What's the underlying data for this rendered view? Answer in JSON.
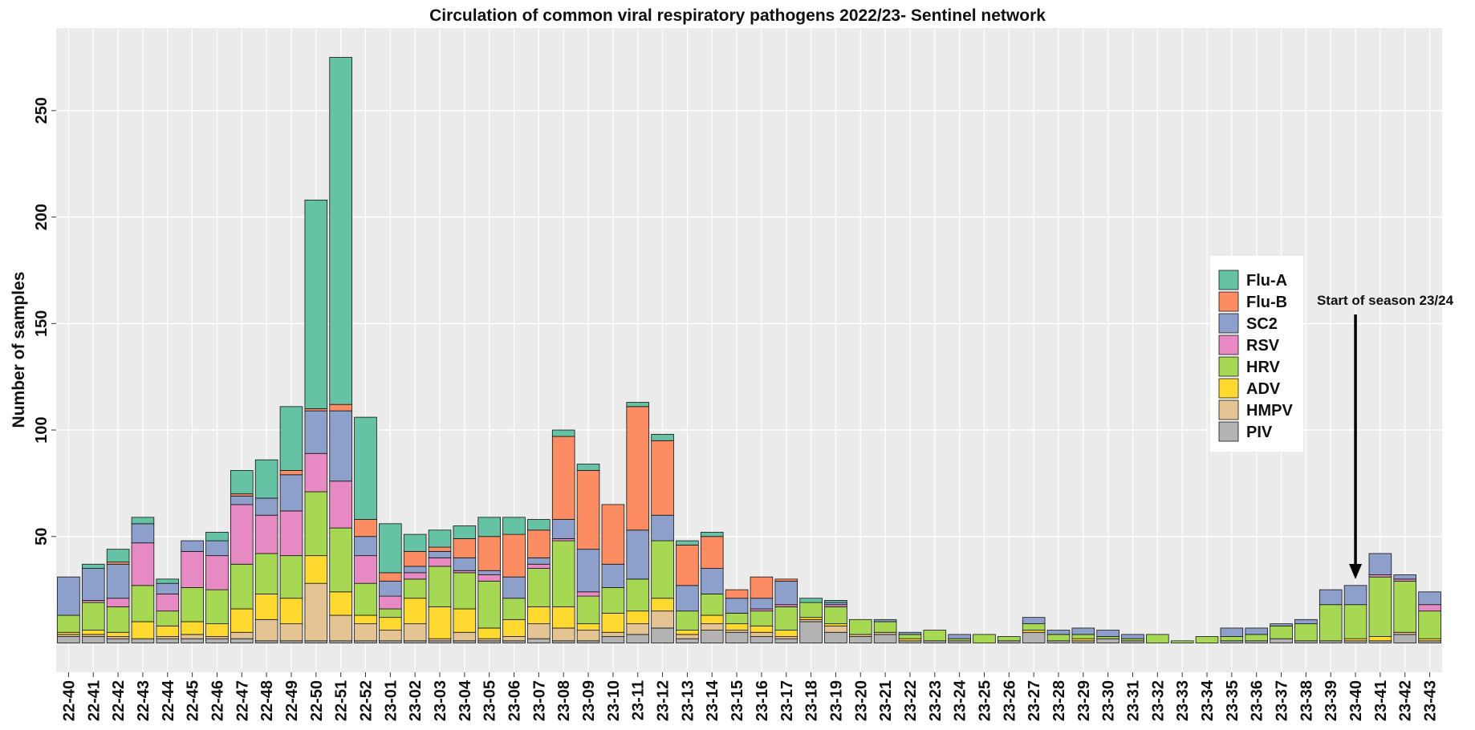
{
  "chart_data": {
    "type": "stacked_bar",
    "title": "Circulation of common viral respiratory  pathogens 2022/23- Sentinel network",
    "y_label": "Number of samples",
    "annotation": "Start of season 23/24",
    "annotation_category": "23-40",
    "categories": [
      "22-40",
      "22-41",
      "22-42",
      "22-43",
      "22-44",
      "22-45",
      "22-46",
      "22-47",
      "22-48",
      "22-49",
      "22-50",
      "22-51",
      "22-52",
      "23-01",
      "23-02",
      "23-03",
      "23-04",
      "23-05",
      "23-06",
      "23-07",
      "23-08",
      "23-09",
      "23-10",
      "23-11",
      "23-12",
      "23-13",
      "23-14",
      "23-15",
      "23-16",
      "23-17",
      "23-18",
      "23-19",
      "23-20",
      "23-21",
      "23-22",
      "23-23",
      "23-24",
      "23-25",
      "23-26",
      "23-27",
      "23-28",
      "23-29",
      "23-30",
      "23-31",
      "23-32",
      "23-33",
      "23-34",
      "23-35",
      "23-36",
      "23-37",
      "23-38",
      "23-39",
      "23-40",
      "23-41",
      "23-42",
      "23-43"
    ],
    "series": [
      {
        "name": "Flu-A",
        "color": "#66c2a5",
        "values": [
          0,
          2,
          6,
          3,
          2,
          0,
          4,
          11,
          18,
          30,
          98,
          163,
          48,
          23,
          8,
          8,
          6,
          9,
          8,
          5,
          3,
          3,
          0,
          2,
          3,
          2,
          2,
          0,
          0,
          0,
          2,
          1,
          0,
          0,
          0,
          0,
          0,
          0,
          0,
          0,
          0,
          0,
          0,
          0,
          0,
          0,
          0,
          0,
          0,
          0,
          0,
          0,
          0,
          0,
          0,
          0
        ]
      },
      {
        "name": "Flu-B",
        "color": "#fc8d62",
        "values": [
          0,
          0,
          1,
          0,
          0,
          0,
          0,
          1,
          0,
          2,
          1,
          3,
          8,
          4,
          7,
          2,
          9,
          16,
          20,
          13,
          39,
          37,
          28,
          58,
          35,
          19,
          15,
          4,
          10,
          1,
          0,
          0,
          0,
          0,
          0,
          0,
          0,
          0,
          0,
          0,
          0,
          0,
          0,
          0,
          0,
          0,
          0,
          0,
          0,
          0,
          0,
          0,
          0,
          0,
          0,
          0
        ]
      },
      {
        "name": "SC2",
        "color": "#8da0cb",
        "values": [
          18,
          15,
          16,
          9,
          5,
          5,
          7,
          4,
          8,
          17,
          20,
          33,
          9,
          7,
          3,
          3,
          6,
          2,
          10,
          3,
          9,
          20,
          11,
          23,
          12,
          12,
          12,
          7,
          5,
          11,
          0,
          1,
          0,
          1,
          1,
          0,
          2,
          0,
          0,
          3,
          2,
          3,
          3,
          2,
          0,
          0,
          0,
          4,
          3,
          1,
          2,
          7,
          9,
          10,
          2,
          6
        ]
      },
      {
        "name": "RSV",
        "color": "#e78ac3",
        "values": [
          0,
          1,
          4,
          20,
          8,
          17,
          16,
          28,
          18,
          21,
          18,
          22,
          13,
          6,
          3,
          4,
          1,
          3,
          0,
          2,
          1,
          2,
          0,
          0,
          0,
          0,
          0,
          0,
          1,
          1,
          0,
          1,
          0,
          0,
          0,
          0,
          0,
          0,
          0,
          0,
          0,
          0,
          0,
          0,
          0,
          0,
          0,
          0,
          0,
          0,
          0,
          0,
          0,
          1,
          1,
          3
        ]
      },
      {
        "name": "HRV",
        "color": "#a6d854",
        "values": [
          8,
          13,
          12,
          17,
          7,
          16,
          16,
          21,
          19,
          20,
          30,
          30,
          15,
          4,
          9,
          19,
          17,
          22,
          10,
          18,
          31,
          13,
          12,
          15,
          27,
          9,
          10,
          5,
          7,
          11,
          7,
          8,
          7,
          5,
          2,
          5,
          1,
          4,
          2,
          3,
          3,
          2,
          1,
          1,
          4,
          1,
          3,
          2,
          3,
          6,
          8,
          17,
          16,
          28,
          24,
          13
        ]
      },
      {
        "name": "ADV",
        "color": "#ffd92f",
        "values": [
          1,
          2,
          2,
          8,
          5,
          6,
          6,
          11,
          12,
          12,
          13,
          11,
          4,
          6,
          12,
          15,
          11,
          5,
          8,
          8,
          10,
          3,
          9,
          6,
          6,
          2,
          4,
          3,
          3,
          3,
          1,
          1,
          0,
          0,
          1,
          0,
          0,
          0,
          0,
          1,
          0,
          1,
          0,
          0,
          0,
          0,
          0,
          0,
          0,
          0,
          0,
          0,
          1,
          2,
          0,
          1
        ]
      },
      {
        "name": "HMPV",
        "color": "#e5c494",
        "values": [
          1,
          1,
          1,
          0,
          1,
          2,
          1,
          3,
          10,
          8,
          27,
          12,
          8,
          5,
          8,
          1,
          4,
          1,
          2,
          7,
          6,
          5,
          2,
          5,
          8,
          2,
          3,
          1,
          2,
          1,
          1,
          3,
          1,
          1,
          0,
          0,
          0,
          0,
          0,
          0,
          0,
          0,
          0,
          0,
          0,
          0,
          0,
          0,
          0,
          0,
          0,
          0,
          0,
          0,
          1,
          0
        ]
      },
      {
        "name": "PIV",
        "color": "#b3b3b3",
        "values": [
          3,
          3,
          2,
          2,
          2,
          2,
          2,
          2,
          1,
          1,
          1,
          1,
          1,
          1,
          1,
          1,
          1,
          1,
          1,
          2,
          1,
          1,
          3,
          4,
          7,
          2,
          6,
          5,
          3,
          2,
          10,
          5,
          3,
          4,
          1,
          1,
          1,
          0,
          1,
          5,
          1,
          1,
          2,
          1,
          0,
          0,
          0,
          1,
          1,
          2,
          1,
          1,
          1,
          1,
          4,
          1
        ]
      }
    ],
    "ylim": [
      -13.75,
      288.75
    ],
    "yticks": [
      50,
      100,
      150,
      200,
      250
    ],
    "grid": true,
    "legend_position": "right"
  }
}
